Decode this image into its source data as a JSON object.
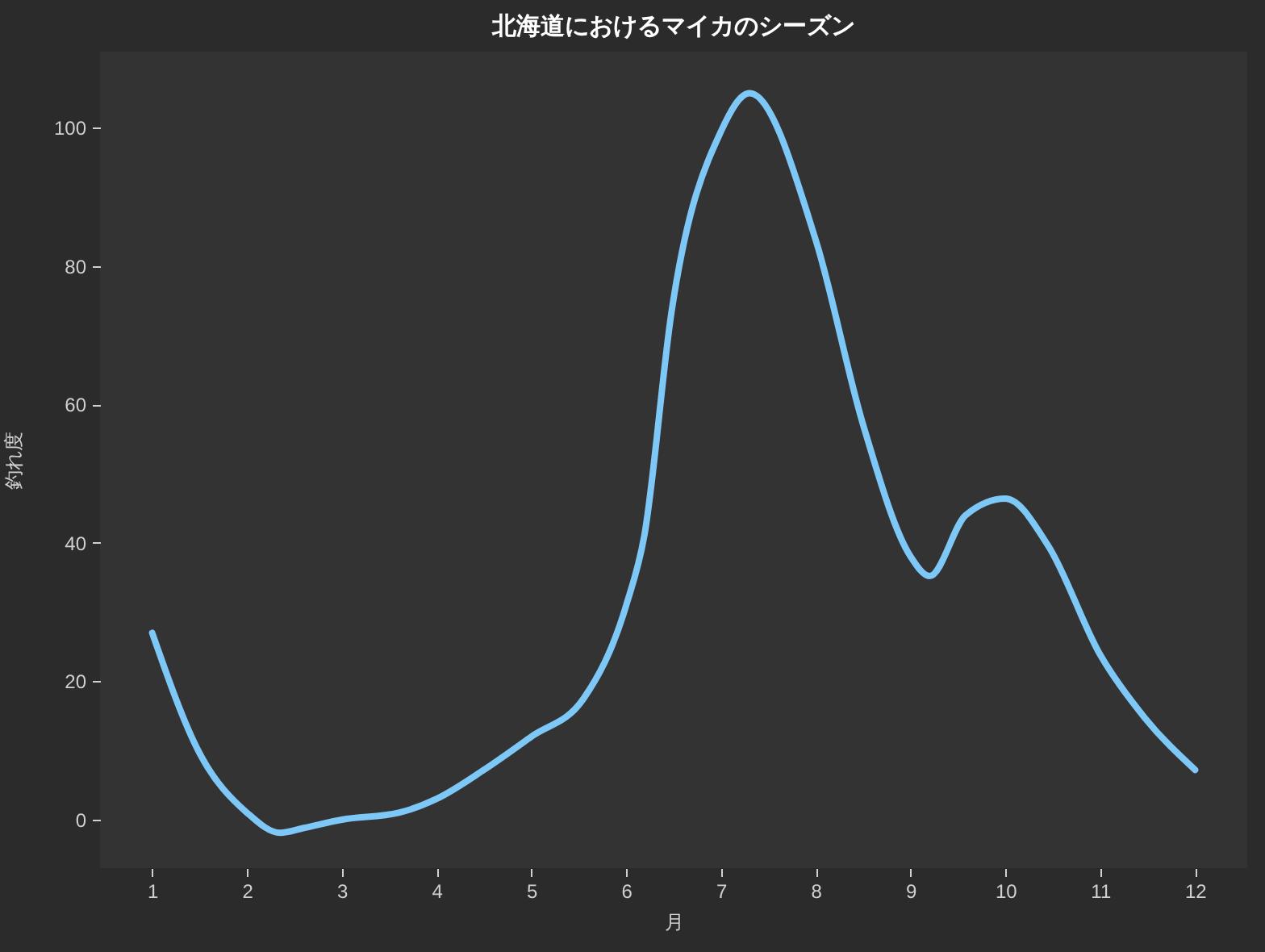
{
  "chart_data": {
    "type": "line",
    "title": "北海道におけるマイカのシーズン",
    "xlabel": "月",
    "ylabel": "釣れ度",
    "x": [
      1,
      1.5,
      2,
      2.35,
      2.6,
      3,
      3.6,
      4,
      4.5,
      5,
      5.55,
      6,
      6.19,
      6.48,
      7,
      7.3,
      8,
      8.5,
      9,
      9.2,
      9.58,
      10,
      10.45,
      11,
      11.47,
      12
    ],
    "series": [
      {
        "color": "#7ec8f8",
        "values": [
          27,
          9.6,
          1,
          -1.9,
          -1.2,
          0,
          1,
          3,
          7.2,
          12,
          17.5,
          31,
          41,
          73.6,
          99.5,
          105,
          83.7,
          57,
          38,
          35.2,
          44,
          46.4,
          39.6,
          23.8,
          14.7,
          7.2
        ]
      }
    ],
    "xlim": [
      0.45,
      12.55
    ],
    "xticks": [
      1,
      2,
      3,
      4,
      5,
      6,
      7,
      8,
      9,
      10,
      11,
      12
    ],
    "ylim": [
      -7,
      111
    ],
    "yticks": [
      0,
      20,
      40,
      60,
      80,
      100
    ],
    "grid": false,
    "marker": "none",
    "line_style": "solid"
  }
}
